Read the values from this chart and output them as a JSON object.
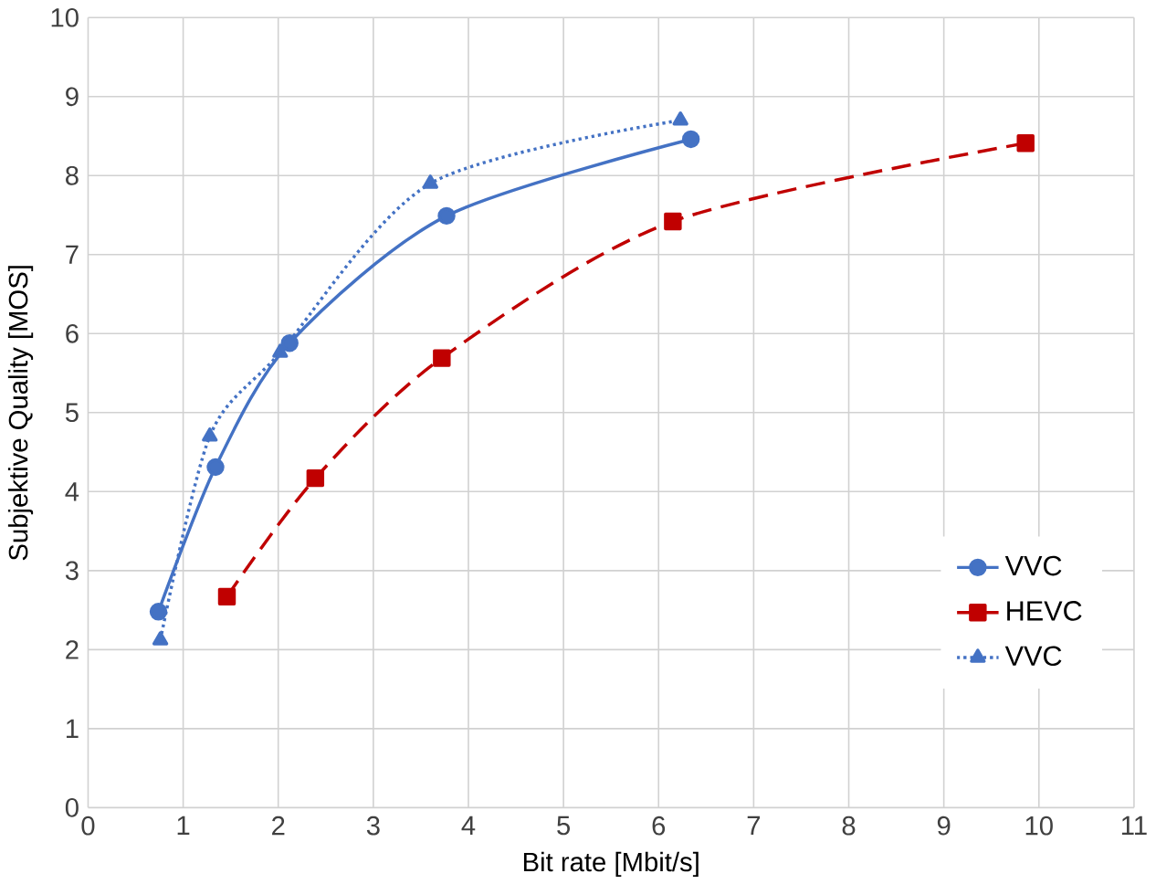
{
  "chart_data": {
    "type": "line",
    "xlabel": "Bit rate [Mbit/s]",
    "ylabel": "Subjektive Quality [MOS]",
    "xlim": [
      0,
      11
    ],
    "xticks": [
      0,
      1,
      2,
      3,
      4,
      5,
      6,
      7,
      8,
      9,
      10,
      11
    ],
    "ylim": [
      0,
      10
    ],
    "yticks": [
      0,
      1,
      2,
      3,
      4,
      5,
      6,
      7,
      8,
      9,
      10
    ],
    "grid": true,
    "legend": "bottom right",
    "series": [
      {
        "name": "VVC",
        "color": "#4472c4",
        "marker": "circle",
        "line_style": "solid",
        "x": [
          0.74,
          1.34,
          2.12,
          3.77,
          6.34
        ],
        "values": [
          2.48,
          4.31,
          5.88,
          7.49,
          8.46
        ]
      },
      {
        "name": "HEVC",
        "color": "#c00000",
        "marker": "square",
        "line_style": "dashed",
        "x": [
          1.46,
          2.39,
          3.72,
          6.15,
          9.86
        ],
        "values": [
          2.67,
          4.17,
          5.69,
          7.42,
          8.41
        ]
      },
      {
        "name": "VVC",
        "color": "#4472c4",
        "marker": "triangle",
        "line_style": "dotted",
        "x": [
          0.76,
          1.28,
          2.02,
          3.6,
          6.23
        ],
        "values": [
          2.12,
          4.7,
          5.76,
          7.9,
          8.7
        ]
      }
    ]
  }
}
